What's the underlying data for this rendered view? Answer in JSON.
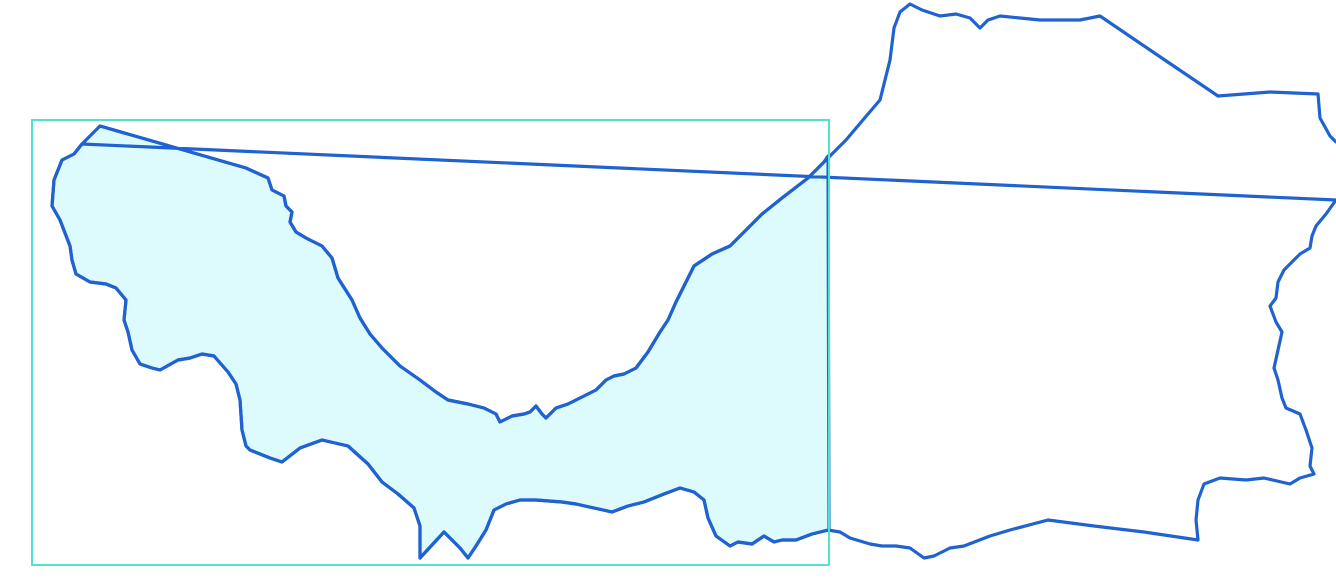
{
  "map": {
    "colors": {
      "boundary": "#1f62d0",
      "highlight_fill": "#ddfbfd",
      "selection": "#4fe3cf",
      "background": "#ffffff"
    },
    "layers": [
      "region-boundary",
      "highlighted-subregion",
      "selection-rectangle"
    ]
  }
}
